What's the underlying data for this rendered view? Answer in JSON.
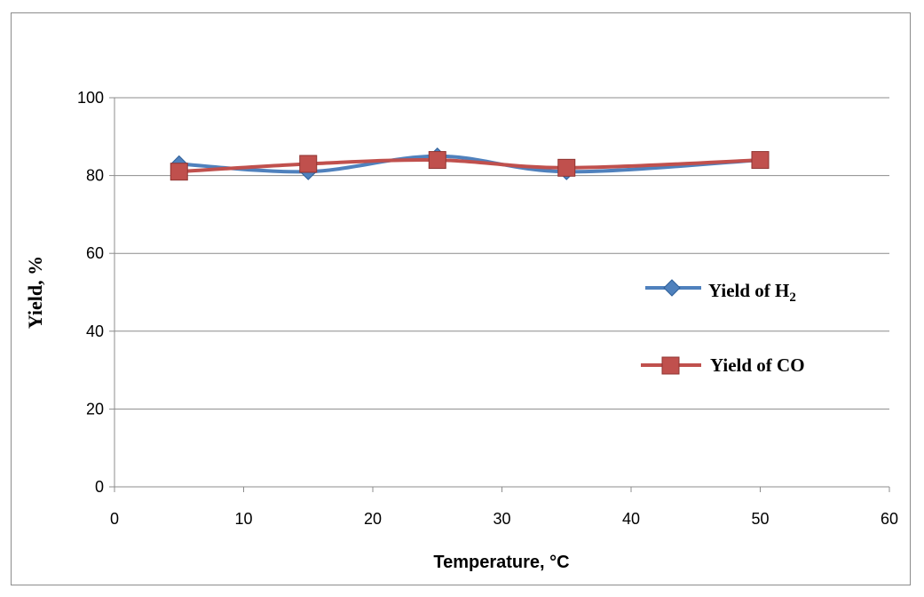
{
  "chart_data": {
    "type": "line",
    "title": "",
    "xlabel": "Temperature, °C",
    "ylabel": "Yield, %",
    "xlim": [
      0,
      60
    ],
    "ylim": [
      0,
      100
    ],
    "xticks": [
      0,
      10,
      20,
      30,
      40,
      50,
      60
    ],
    "yticks": [
      0,
      20,
      40,
      60,
      80,
      100
    ],
    "grid": "horizontal",
    "legend_position": "right",
    "series": [
      {
        "name": "Yield of H2",
        "name_base": "Yield of H",
        "name_sub": "2",
        "color": "#4F81BD",
        "marker": "diamond",
        "x": [
          5,
          15,
          25,
          35,
          50
        ],
        "y": [
          83,
          81,
          85,
          81,
          84
        ]
      },
      {
        "name": "Yield of CO",
        "color": "#C0504D",
        "marker": "square",
        "x": [
          5,
          15,
          25,
          35,
          50
        ],
        "y": [
          81,
          83,
          84,
          82,
          84
        ]
      }
    ]
  }
}
